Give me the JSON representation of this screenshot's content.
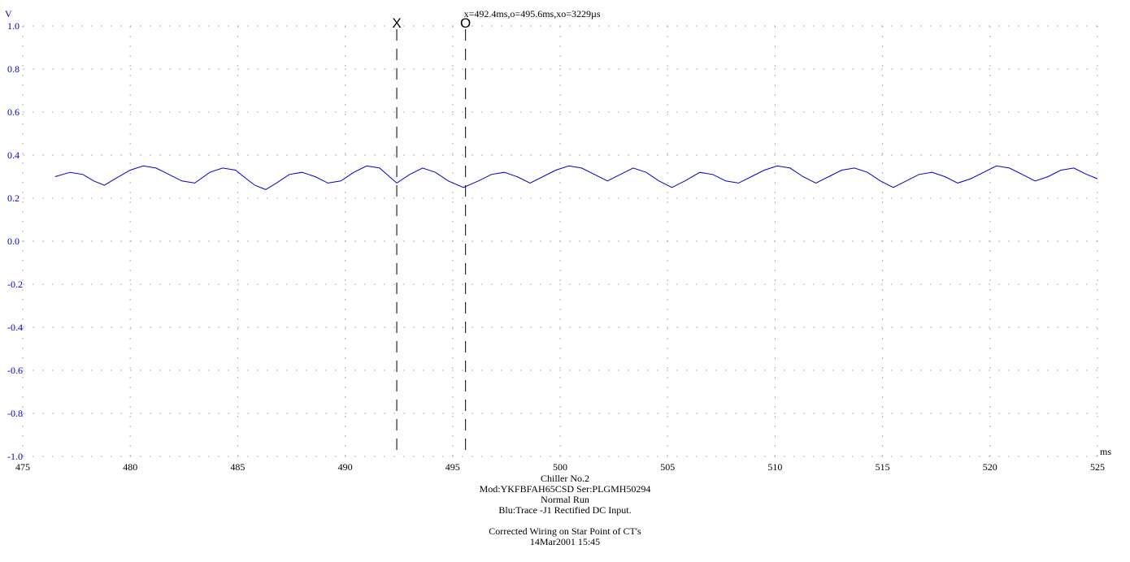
{
  "chart_data": {
    "type": "line",
    "ylabel": "V",
    "xlabel": "ms",
    "xlim": [
      475,
      525
    ],
    "ylim": [
      -1.0,
      1.0
    ],
    "x_ticks": [
      "475",
      "480",
      "485",
      "490",
      "495",
      "500",
      "505",
      "510",
      "515",
      "520",
      "525"
    ],
    "y_ticks": [
      "1.0",
      "0.8",
      "0.6",
      "0.4",
      "0.2",
      "0.0",
      "-0.2",
      "-0.4",
      "-0.6",
      "-0.8",
      "-1.0"
    ],
    "x_tick_values": [
      475,
      480,
      485,
      490,
      495,
      500,
      505,
      510,
      515,
      520,
      525
    ],
    "y_tick_values": [
      1.0,
      0.8,
      0.6,
      0.4,
      0.2,
      0.0,
      -0.2,
      -0.4,
      -0.6,
      -0.8,
      -1.0
    ],
    "grid": true,
    "series": [
      {
        "color": "#0000cc",
        "x": [
          476.5,
          477.2,
          477.8,
          478.3,
          478.8,
          479.3,
          480.0,
          480.6,
          481.2,
          481.8,
          482.4,
          483.0,
          483.7,
          484.3,
          484.9,
          485.4,
          485.8,
          486.3,
          486.8,
          487.4,
          488.0,
          488.6,
          489.2,
          489.8,
          490.4,
          491.0,
          491.6,
          492.4,
          493.0,
          493.6,
          494.2,
          494.8,
          495.5,
          496.2,
          496.8,
          497.4,
          498.0,
          498.6,
          499.2,
          499.8,
          500.4,
          501.0,
          501.6,
          502.2,
          502.8,
          503.4,
          504.0,
          504.6,
          505.2,
          505.8,
          506.5,
          507.1,
          507.7,
          508.3,
          508.9,
          509.5,
          510.1,
          510.7,
          511.3,
          511.9,
          512.5,
          513.1,
          513.7,
          514.3,
          514.9,
          515.5,
          516.1,
          516.7,
          517.3,
          517.9,
          518.5,
          519.1,
          519.7,
          520.3,
          520.9,
          521.5,
          522.1,
          522.7,
          523.3,
          523.9,
          524.5,
          525.0
        ],
        "y": [
          0.3,
          0.32,
          0.31,
          0.28,
          0.26,
          0.29,
          0.33,
          0.35,
          0.34,
          0.31,
          0.28,
          0.27,
          0.32,
          0.34,
          0.33,
          0.29,
          0.26,
          0.24,
          0.27,
          0.31,
          0.32,
          0.3,
          0.27,
          0.28,
          0.32,
          0.35,
          0.34,
          0.27,
          0.31,
          0.34,
          0.32,
          0.28,
          0.25,
          0.28,
          0.31,
          0.32,
          0.3,
          0.27,
          0.3,
          0.33,
          0.35,
          0.34,
          0.31,
          0.28,
          0.31,
          0.34,
          0.32,
          0.28,
          0.25,
          0.28,
          0.32,
          0.31,
          0.28,
          0.27,
          0.3,
          0.33,
          0.35,
          0.34,
          0.3,
          0.27,
          0.3,
          0.33,
          0.34,
          0.32,
          0.28,
          0.25,
          0.28,
          0.31,
          0.32,
          0.3,
          0.27,
          0.29,
          0.32,
          0.35,
          0.34,
          0.31,
          0.28,
          0.3,
          0.33,
          0.34,
          0.31,
          0.29
        ]
      }
    ],
    "cursors": [
      {
        "marker": "X",
        "x": 492.4
      },
      {
        "marker": "O",
        "x": 495.6
      }
    ],
    "cursor_readout": "x=492.4ms,o=495.6ms,xo=3229µs",
    "captions": [
      "Chiller No.2",
      "Mod:YKFBFAH65CSD  Ser:PLGMH50294",
      "Normal Run",
      "Blu:Trace -J1 Rectified DC Input.",
      "",
      "Corrected Wiring on Star Point of CT's",
      "14Mar2001  15:45"
    ]
  }
}
